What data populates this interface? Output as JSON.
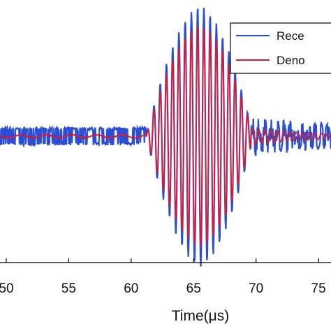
{
  "chart_data": {
    "type": "line",
    "xlabel": "Time(μs)",
    "ylabel": "",
    "title": "",
    "xlim": [
      49.5,
      76
    ],
    "ylim": [
      -1.25,
      1.35
    ],
    "x_ticks": [
      50,
      55,
      60,
      65,
      70,
      75
    ],
    "x_tick_labels": [
      "50",
      "55",
      "60",
      "65",
      "70",
      "75"
    ],
    "grid": false,
    "legend_position": "top-right",
    "series": [
      {
        "name": "Rece",
        "color": "#2b4fd4",
        "description_points": {
          "noise_band_t": [
            49.5,
            61.2
          ],
          "noise_amplitude": 0.09,
          "burst_center": 65.5,
          "burst_span": [
            61.2,
            69.6
          ],
          "burst_peak_amplitude": 1.2,
          "carrier_period": 0.5,
          "tail_span": [
            69.6,
            76
          ],
          "tail_amplitude": 0.12
        }
      },
      {
        "name": "Deno",
        "color": "#e0192f",
        "description_points": {
          "low_noise_amplitude": 0.015,
          "burst_center": 65.5,
          "burst_span": [
            61.2,
            69.6
          ],
          "burst_peak_amplitude": 1.1,
          "carrier_period": 0.5,
          "tail_amplitude": 0.08
        }
      }
    ]
  },
  "legend": {
    "items": [
      {
        "label": "Rece",
        "color": "#2b4fd4"
      },
      {
        "label": "Deno",
        "color": "#e0192f"
      }
    ]
  }
}
